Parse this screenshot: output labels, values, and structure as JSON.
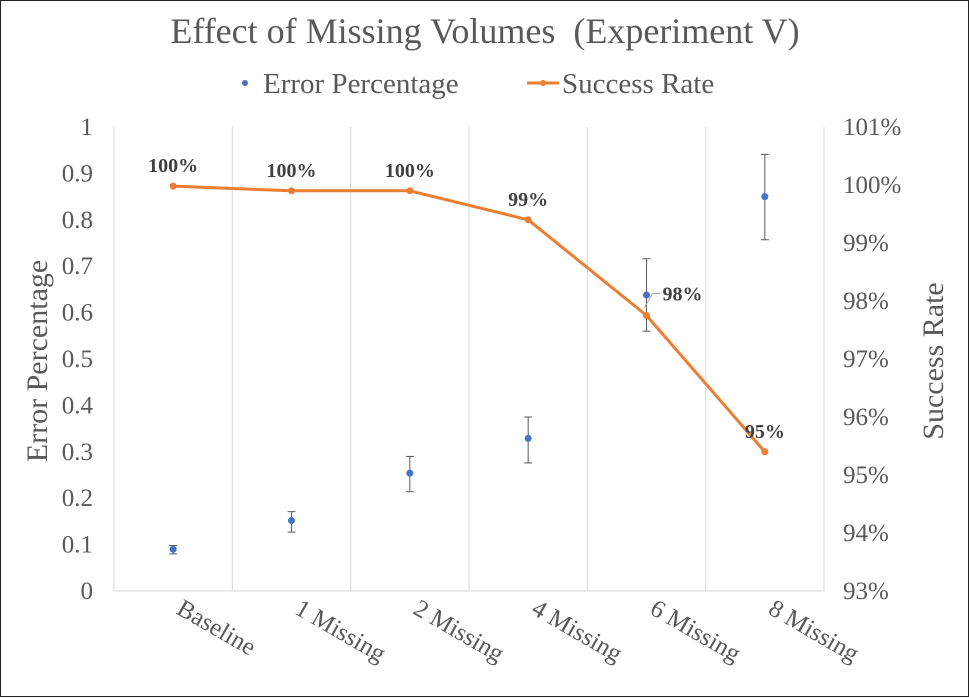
{
  "chart_data": {
    "type": "line",
    "title": "Effect of Missing Volumes  (Experiment V)",
    "categories": [
      "Baseline",
      "1 Missing",
      "2 Missing",
      "4 Missing",
      "6 Missing",
      "8 Missing"
    ],
    "series": [
      {
        "name": "Error Percentage",
        "kind": "scatter",
        "axis": "left",
        "color": "#4472c4",
        "values": [
          0.09,
          0.152,
          0.254,
          0.329,
          0.638,
          0.85
        ],
        "error_low": [
          0.08,
          0.127,
          0.214,
          0.276,
          0.56,
          0.757
        ],
        "error_high": [
          0.098,
          0.171,
          0.29,
          0.375,
          0.716,
          0.941
        ]
      },
      {
        "name": "Success Rate",
        "kind": "line",
        "axis": "right",
        "color": "#ed7d31",
        "values": [
          99.98,
          99.9,
          99.9,
          99.4,
          97.75,
          95.4
        ],
        "data_labels": [
          "100%",
          "100%",
          "100%",
          "99%",
          "98%",
          "95%"
        ]
      }
    ],
    "y_left": {
      "label": "Error Percentage",
      "range": [
        0,
        1
      ],
      "ticks": [
        "0",
        "0.1",
        "0.2",
        "0.3",
        "0.4",
        "0.5",
        "0.6",
        "0.7",
        "0.8",
        "0.9",
        "1"
      ]
    },
    "y_right": {
      "label": "Success Rate",
      "range": [
        93,
        101
      ],
      "ticks": [
        "93%",
        "94%",
        "95%",
        "96%",
        "97%",
        "98%",
        "99%",
        "100%",
        "101%"
      ]
    },
    "legend_position": "top-center",
    "grid": "vertical"
  }
}
